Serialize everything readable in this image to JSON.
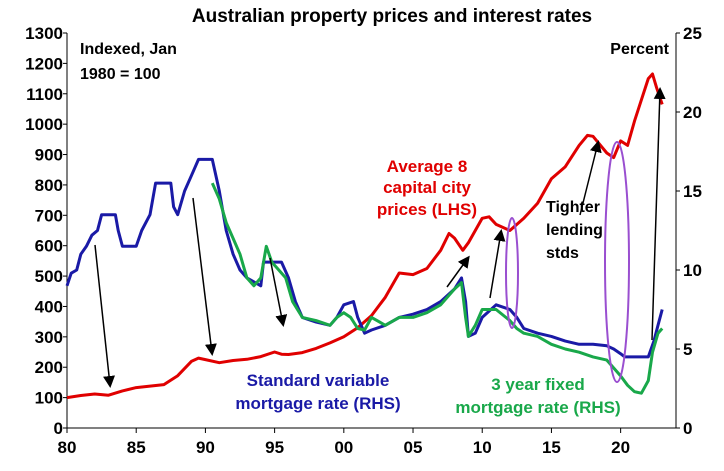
{
  "chart_data": {
    "type": "line",
    "title": "Australian property prices and interest rates",
    "left_axis_label": [
      "Indexed, Jan",
      "1980 = 100"
    ],
    "right_axis_label": "Percent",
    "xlim": [
      1980,
      2024
    ],
    "ylim_left": [
      0,
      1300
    ],
    "ylim_right": [
      0,
      25
    ],
    "x_ticks": [
      {
        "value": 1980,
        "label": "80"
      },
      {
        "value": 1985,
        "label": "85"
      },
      {
        "value": 1990,
        "label": "90"
      },
      {
        "value": 1995,
        "label": "95"
      },
      {
        "value": 2000,
        "label": "00"
      },
      {
        "value": 2005,
        "label": "05"
      },
      {
        "value": 2010,
        "label": "10"
      },
      {
        "value": 2015,
        "label": "15"
      },
      {
        "value": 2020,
        "label": "20"
      }
    ],
    "y_ticks_left": [
      0,
      100,
      200,
      300,
      400,
      500,
      600,
      700,
      800,
      900,
      1000,
      1100,
      1200,
      1300
    ],
    "y_ticks_right": [
      0,
      5,
      10,
      15,
      20,
      25
    ],
    "series": [
      {
        "name": "Average 8 capital city prices (LHS)",
        "label_lines": [
          "Average 8",
          "capital city",
          "prices (LHS)"
        ],
        "axis": "left",
        "color": "#e00000",
        "points": [
          [
            1980.0,
            100
          ],
          [
            1981.0,
            107
          ],
          [
            1982.0,
            112
          ],
          [
            1983.0,
            108
          ],
          [
            1984.0,
            122
          ],
          [
            1985.0,
            133
          ],
          [
            1986.0,
            138
          ],
          [
            1987.0,
            143
          ],
          [
            1988.0,
            172
          ],
          [
            1989.0,
            220
          ],
          [
            1989.5,
            230
          ],
          [
            1990.0,
            225
          ],
          [
            1991.0,
            215
          ],
          [
            1992.0,
            222
          ],
          [
            1993.0,
            226
          ],
          [
            1994.0,
            235
          ],
          [
            1995.0,
            250
          ],
          [
            1995.5,
            243
          ],
          [
            1996.0,
            242
          ],
          [
            1997.0,
            248
          ],
          [
            1998.0,
            262
          ],
          [
            1999.0,
            280
          ],
          [
            2000.0,
            300
          ],
          [
            2001.0,
            330
          ],
          [
            2002.0,
            370
          ],
          [
            2003.0,
            430
          ],
          [
            2004.0,
            510
          ],
          [
            2005.0,
            505
          ],
          [
            2006.0,
            525
          ],
          [
            2007.0,
            585
          ],
          [
            2007.6,
            640
          ],
          [
            2008.0,
            625
          ],
          [
            2008.6,
            585
          ],
          [
            2009.0,
            610
          ],
          [
            2010.0,
            690
          ],
          [
            2010.5,
            695
          ],
          [
            2011.0,
            670
          ],
          [
            2012.0,
            650
          ],
          [
            2013.0,
            690
          ],
          [
            2014.0,
            740
          ],
          [
            2015.0,
            820
          ],
          [
            2016.0,
            860
          ],
          [
            2017.0,
            930
          ],
          [
            2017.6,
            963
          ],
          [
            2018.0,
            960
          ],
          [
            2019.0,
            905
          ],
          [
            2019.5,
            890
          ],
          [
            2020.0,
            945
          ],
          [
            2020.5,
            930
          ],
          [
            2021.0,
            1010
          ],
          [
            2021.5,
            1080
          ],
          [
            2022.0,
            1150
          ],
          [
            2022.3,
            1165
          ],
          [
            2022.6,
            1120
          ],
          [
            2023.0,
            1065
          ]
        ]
      },
      {
        "name": "Standard variable mortgage rate (RHS)",
        "label_lines": [
          "Standard variable",
          "mortgage rate (RHS)"
        ],
        "axis": "right",
        "color": "#1a1aa6",
        "points": [
          [
            1980.0,
            9.0
          ],
          [
            1980.3,
            9.8
          ],
          [
            1980.7,
            10.0
          ],
          [
            1981.0,
            11.0
          ],
          [
            1981.4,
            11.5
          ],
          [
            1981.8,
            12.2
          ],
          [
            1982.2,
            12.5
          ],
          [
            1982.5,
            13.5
          ],
          [
            1983.5,
            13.5
          ],
          [
            1983.7,
            12.5
          ],
          [
            1984.0,
            11.5
          ],
          [
            1985.0,
            11.5
          ],
          [
            1985.4,
            12.5
          ],
          [
            1986.0,
            13.5
          ],
          [
            1986.4,
            15.5
          ],
          [
            1987.5,
            15.5
          ],
          [
            1987.7,
            14.0
          ],
          [
            1988.0,
            13.5
          ],
          [
            1988.5,
            15.0
          ],
          [
            1989.0,
            16.0
          ],
          [
            1989.5,
            17.0
          ],
          [
            1990.5,
            17.0
          ],
          [
            1991.0,
            15.0
          ],
          [
            1991.5,
            12.5
          ],
          [
            1992.0,
            11.0
          ],
          [
            1992.5,
            10.0
          ],
          [
            1993.0,
            9.5
          ],
          [
            1994.0,
            9.0
          ],
          [
            1994.2,
            10.5
          ],
          [
            1995.5,
            10.5
          ],
          [
            1996.0,
            9.5
          ],
          [
            1996.5,
            8.0
          ],
          [
            1997.0,
            7.0
          ],
          [
            1998.0,
            6.7
          ],
          [
            1999.0,
            6.5
          ],
          [
            1999.5,
            7.0
          ],
          [
            2000.0,
            7.8
          ],
          [
            2000.7,
            8.0
          ],
          [
            2001.0,
            7.0
          ],
          [
            2001.5,
            6.0
          ],
          [
            2002.0,
            6.2
          ],
          [
            2003.0,
            6.5
          ],
          [
            2004.0,
            7.0
          ],
          [
            2005.0,
            7.2
          ],
          [
            2006.0,
            7.5
          ],
          [
            2007.0,
            8.0
          ],
          [
            2008.0,
            8.8
          ],
          [
            2008.5,
            9.5
          ],
          [
            2008.8,
            8.0
          ],
          [
            2009.0,
            5.8
          ],
          [
            2009.5,
            6.0
          ],
          [
            2010.0,
            7.0
          ],
          [
            2011.0,
            7.8
          ],
          [
            2012.0,
            7.5
          ],
          [
            2012.5,
            7.0
          ],
          [
            2013.0,
            6.3
          ],
          [
            2014.0,
            6.0
          ],
          [
            2015.0,
            5.8
          ],
          [
            2016.0,
            5.5
          ],
          [
            2017.0,
            5.3
          ],
          [
            2018.0,
            5.3
          ],
          [
            2019.0,
            5.2
          ],
          [
            2019.5,
            5.0
          ],
          [
            2020.0,
            4.7
          ],
          [
            2020.3,
            4.5
          ],
          [
            2021.0,
            4.5
          ],
          [
            2022.0,
            4.5
          ],
          [
            2022.4,
            5.5
          ],
          [
            2022.7,
            6.5
          ],
          [
            2023.0,
            7.5
          ]
        ]
      },
      {
        "name": "3 year fixed mortgage rate (RHS)",
        "label_lines": [
          "3 year fixed",
          "mortgage rate (RHS)"
        ],
        "axis": "right",
        "color": "#19a84a",
        "points": [
          [
            1990.5,
            15.5
          ],
          [
            1991.0,
            14.5
          ],
          [
            1991.5,
            13.0
          ],
          [
            1992.0,
            12.0
          ],
          [
            1992.5,
            11.0
          ],
          [
            1993.0,
            9.5
          ],
          [
            1993.5,
            9.0
          ],
          [
            1994.0,
            9.5
          ],
          [
            1994.4,
            11.5
          ],
          [
            1994.8,
            10.5
          ],
          [
            1995.3,
            10.0
          ],
          [
            1995.8,
            9.5
          ],
          [
            1996.3,
            8.0
          ],
          [
            1997.0,
            7.0
          ],
          [
            1998.0,
            6.8
          ],
          [
            1999.0,
            6.5
          ],
          [
            1999.5,
            7.0
          ],
          [
            2000.0,
            7.3
          ],
          [
            2000.5,
            7.0
          ],
          [
            2001.0,
            6.3
          ],
          [
            2001.5,
            6.2
          ],
          [
            2002.0,
            7.0
          ],
          [
            2003.0,
            6.5
          ],
          [
            2004.0,
            7.0
          ],
          [
            2005.0,
            7.0
          ],
          [
            2006.0,
            7.3
          ],
          [
            2007.0,
            7.8
          ],
          [
            2008.0,
            8.8
          ],
          [
            2008.5,
            9.2
          ],
          [
            2008.8,
            7.0
          ],
          [
            2009.0,
            5.8
          ],
          [
            2009.5,
            6.5
          ],
          [
            2010.0,
            7.5
          ],
          [
            2011.0,
            7.5
          ],
          [
            2012.0,
            6.8
          ],
          [
            2012.5,
            6.3
          ],
          [
            2013.0,
            6.0
          ],
          [
            2014.0,
            5.8
          ],
          [
            2015.0,
            5.3
          ],
          [
            2016.0,
            5.0
          ],
          [
            2017.0,
            4.8
          ],
          [
            2018.0,
            4.5
          ],
          [
            2019.0,
            4.3
          ],
          [
            2019.5,
            3.8
          ],
          [
            2020.0,
            3.3
          ],
          [
            2020.5,
            2.7
          ],
          [
            2021.0,
            2.3
          ],
          [
            2021.5,
            2.2
          ],
          [
            2022.0,
            3.0
          ],
          [
            2022.3,
            4.8
          ],
          [
            2022.7,
            6.0
          ],
          [
            2023.0,
            6.3
          ]
        ]
      }
    ],
    "annotations": [
      {
        "text_lines": [
          "Tighter",
          "lending",
          "stds"
        ]
      }
    ]
  }
}
